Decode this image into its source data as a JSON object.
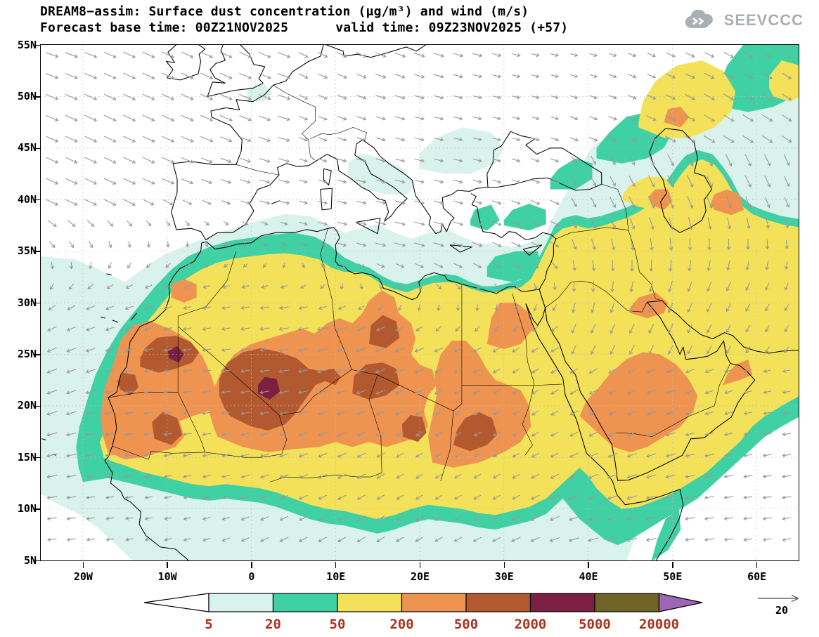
{
  "header": {
    "title_line1": "DREAM8−assim: Surface dust concentration (μg/m³) and wind (m/s)",
    "base_time_label": "Forecast base time: 00Z21NOV2025",
    "valid_time_label": "valid time: 09Z23NOV2025 (+57)",
    "logo_text": "SEEVCCC"
  },
  "axes": {
    "lat_ticks": [
      "55N",
      "50N",
      "45N",
      "40N",
      "35N",
      "30N",
      "25N",
      "20N",
      "15N",
      "10N",
      "5N"
    ],
    "lon_ticks": [
      "20W",
      "10W",
      "0",
      "10E",
      "20E",
      "30E",
      "40E",
      "50E",
      "60E"
    ]
  },
  "legend": {
    "boundaries": [
      "5",
      "20",
      "50",
      "200",
      "500",
      "2000",
      "5000",
      "20000"
    ],
    "colors": [
      "#ffffff",
      "#d9f2ec",
      "#3fd1a3",
      "#f3e159",
      "#ee9450",
      "#b2592f",
      "#7b2043",
      "#6f6426",
      "#9c67b5"
    ],
    "label_color": "#a8341f",
    "wind_ref_label": "20"
  },
  "colors": {
    "wind_arrow": "#999999",
    "coast": "#000000",
    "graticule": "#bbbbbb",
    "logo_gray": "#a9afb4"
  },
  "chart_data": {
    "type": "heatmap",
    "title": "DREAM8−assim: Surface dust concentration (μg/m³) and wind (m/s)",
    "forecast_base_time": "00Z21NOV2025",
    "valid_time": "09Z23NOV2025 (+57)",
    "lat_ticks": [
      "55N",
      "50N",
      "45N",
      "40N",
      "35N",
      "30N",
      "25N",
      "20N",
      "15N",
      "10N",
      "5N"
    ],
    "lon_ticks": [
      "20W",
      "10W",
      "0",
      "10E",
      "20E",
      "30E",
      "40E",
      "50E",
      "60E"
    ],
    "contour_levels_ug_m3": [
      5,
      20,
      50,
      200,
      500,
      2000,
      5000,
      20000
    ],
    "wind_reference_ms": 20,
    "legend_position": "bottom"
  }
}
